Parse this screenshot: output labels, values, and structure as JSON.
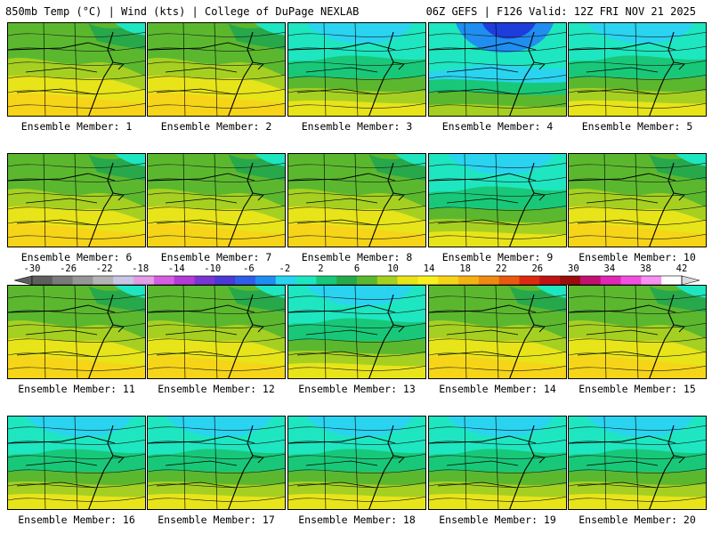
{
  "header": {
    "left_title": "850mb Temp (°C) | Wind (kts) | College of DuPage NEXLAB",
    "right_title": "06Z GEFS | F126 Valid: 12Z FRI NOV 21 2025"
  },
  "caption_prefix": "Ensemble Member: ",
  "members": [
    "1",
    "2",
    "3",
    "4",
    "5",
    "6",
    "7",
    "8",
    "9",
    "10",
    "11",
    "12",
    "13",
    "14",
    "15",
    "16",
    "17",
    "18",
    "19",
    "20"
  ],
  "colorbar": {
    "labels": [
      "-30",
      "-26",
      "-22",
      "-18",
      "-14",
      "-10",
      "-6",
      "-2",
      "2",
      "6",
      "10",
      "14",
      "18",
      "22",
      "26",
      "30",
      "34",
      "38",
      "42"
    ],
    "colors": [
      "#5e5e5e",
      "#7a7a7a",
      "#969696",
      "#b4b4b4",
      "#c8c8e6",
      "#e39ee6",
      "#d45fe0",
      "#b23cd6",
      "#7a36d0",
      "#4b3ad6",
      "#2f5ee8",
      "#1f8ef0",
      "#2ad4f0",
      "#1ee6c0",
      "#18c878",
      "#27a84a",
      "#5bb82e",
      "#a6d021",
      "#e8e41a",
      "#f8f020",
      "#f6d418",
      "#f4b214",
      "#ef8a12",
      "#e85a10",
      "#dc2a10",
      "#c01414",
      "#9c0c0c",
      "#c0126e",
      "#e028b4",
      "#f050e0",
      "#f890f0",
      "#ffffff"
    ],
    "accent_end_color": "#dadada"
  },
  "map_colors": {
    "cold1": "#1e3edc",
    "cold2": "#1f8ef0",
    "cool1": "#2ad4f0",
    "cool2": "#1ee6c0",
    "mid1": "#18c878",
    "mid2": "#27a84a",
    "mild": "#5bb82e",
    "warm1": "#a6d021",
    "warm2": "#e8e41a",
    "warm3": "#f6d418",
    "warm4": "#f4b214"
  },
  "panel_character": [
    "warm",
    "warm",
    "cool",
    "cold",
    "cool",
    "warm",
    "warm",
    "warm",
    "cool",
    "warm",
    "warm",
    "warm",
    "cool",
    "warm",
    "warm",
    "cool",
    "cool",
    "cool",
    "cool",
    "cool"
  ]
}
